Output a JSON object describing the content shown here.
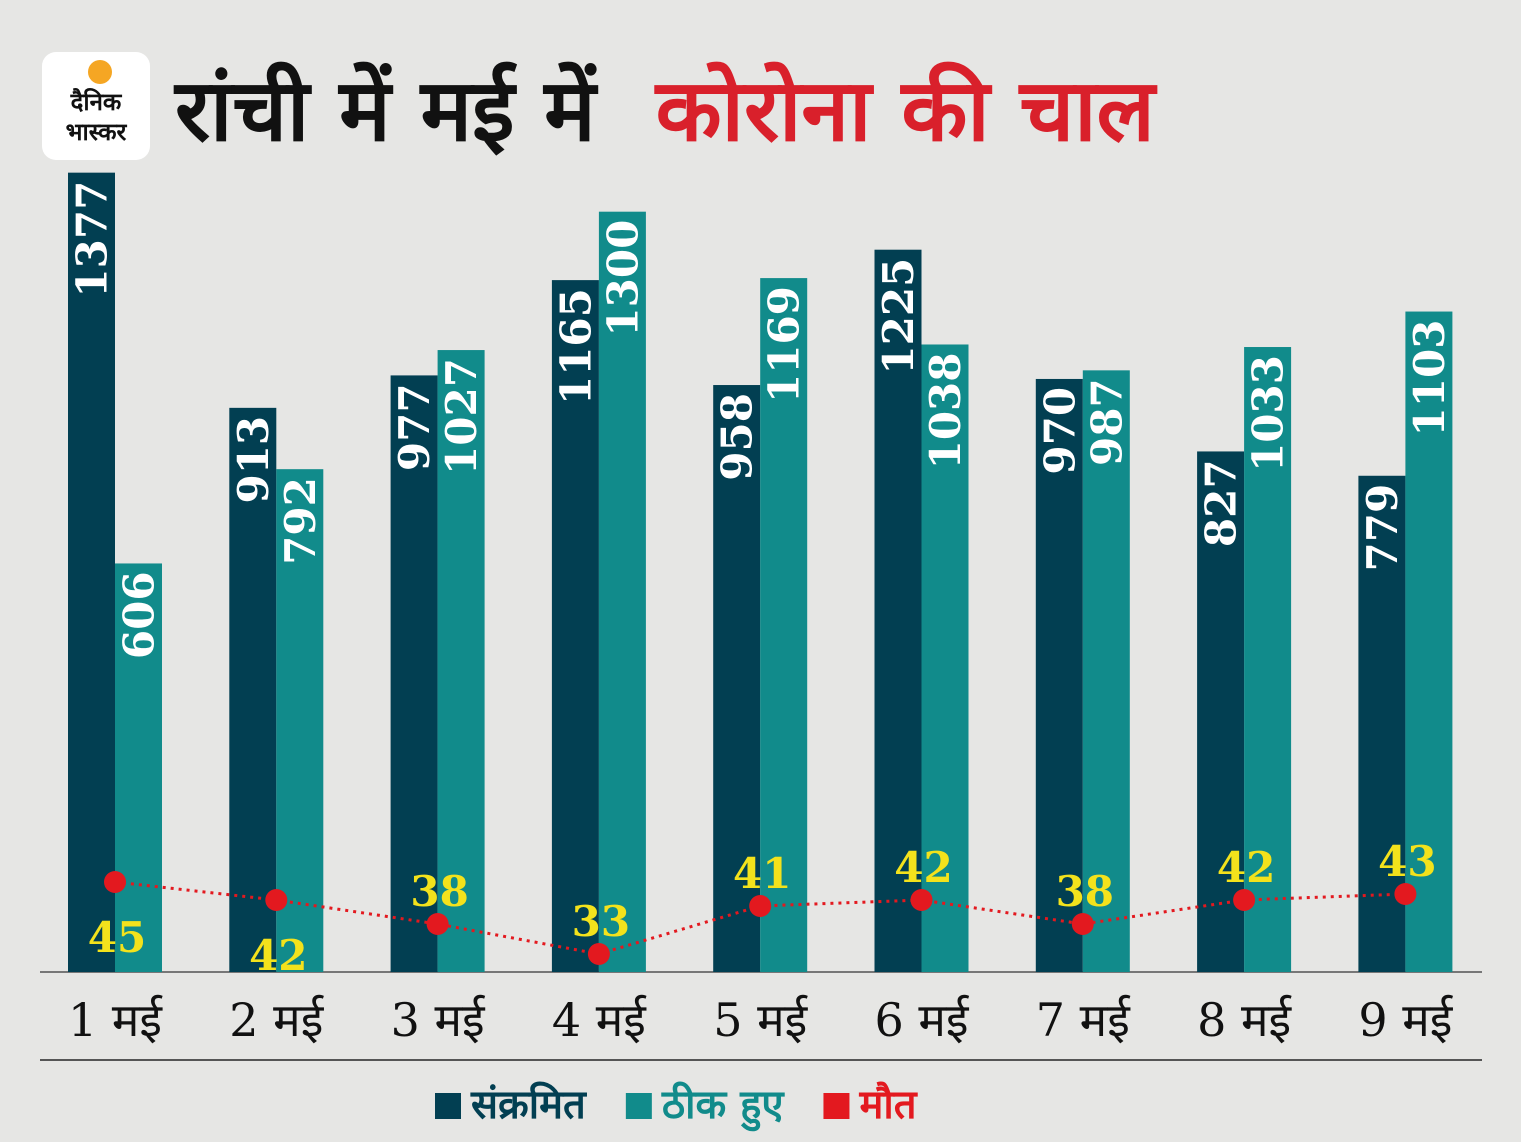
{
  "chart_data": {
    "type": "bar",
    "logo": [
      "दैनिक",
      "भास्कर"
    ],
    "title": "रांची में मई में",
    "title_highlight": "कोरोना की चाल",
    "categories": [
      "1 मई",
      "2 मई",
      "3 मई",
      "4 मई",
      "5 मई",
      "6 मई",
      "7 मई",
      "8 मई",
      "9 मई"
    ],
    "series": [
      {
        "name": "संक्रमित",
        "color": "#023f52",
        "values": [
          1377,
          913,
          977,
          1165,
          958,
          1225,
          970,
          827,
          779
        ]
      },
      {
        "name": "ठीक हुए",
        "color": "#118b8b",
        "values": [
          606,
          792,
          1027,
          1300,
          1169,
          1038,
          987,
          1033,
          1103
        ]
      },
      {
        "name": "मौत",
        "color": "#e3191f",
        "type": "line",
        "axis": "y2",
        "values": [
          45,
          42,
          38,
          33,
          41,
          42,
          38,
          42,
          43
        ]
      }
    ],
    "ylim": [
      -200,
      1400
    ],
    "y2lim": [
      30,
      50
    ],
    "label_color": "#f3e21c"
  }
}
